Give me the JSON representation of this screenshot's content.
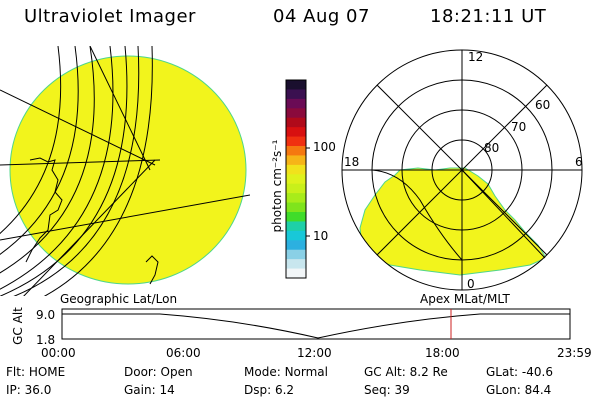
{
  "header": {
    "instrument": "Ultraviolet Imager",
    "date": "04 Aug 07",
    "time": "18:21:11 UT"
  },
  "colorbar": {
    "unit_label": "photon cm⁻²s⁻¹",
    "ticks": [
      "100",
      "10"
    ],
    "colors": [
      "#1a0f2e",
      "#3a1050",
      "#6a0b55",
      "#8a0a3c",
      "#b00a1a",
      "#d81010",
      "#f03010",
      "#f57810",
      "#f6b418",
      "#f1e21c",
      "#dff21c",
      "#c9f01a",
      "#a8ec1a",
      "#7fe41c",
      "#3fdc2a",
      "#1ed0a8",
      "#18c8d8",
      "#2cb0e0",
      "#8ad0e6",
      "#c8e6ee",
      "#f2f6f8"
    ]
  },
  "polar": {
    "ring_labels": [
      "80",
      "70",
      "60"
    ],
    "clock_labels": [
      "12",
      "18",
      "6",
      "0"
    ]
  },
  "timeline": {
    "left_label": "Geographic Lat/Lon",
    "right_label": "Apex MLat/MLT",
    "y_axis_title": "GC Alt",
    "y_ticks": [
      "9.0",
      "1.8"
    ],
    "x_ticks": [
      "00:00",
      "06:00",
      "12:00",
      "18:00",
      "23:59"
    ],
    "marker_time": "18:21"
  },
  "status": {
    "rows": [
      [
        {
          "key": "Flt:",
          "val": "HOME"
        },
        {
          "key": "Door:",
          "val": "Open"
        },
        {
          "key": "Mode:",
          "val": "Normal"
        },
        {
          "key": "GC Alt:",
          "val": "8.2 Re"
        },
        {
          "key": "GLat:",
          "val": "-40.6"
        }
      ],
      [
        {
          "key": "IP:",
          "val": "36.0"
        },
        {
          "key": "Gain:",
          "val": "14"
        },
        {
          "key": "Dsp:",
          "val": "6.2"
        },
        {
          "key": "Seq:",
          "val": "39"
        },
        {
          "key": "GLon:",
          "val": "84.4"
        }
      ]
    ]
  },
  "colors": {
    "aurora_fill": "#f2f41c",
    "aurora_edge": "#4fd68a",
    "marker": "#cc2020"
  }
}
